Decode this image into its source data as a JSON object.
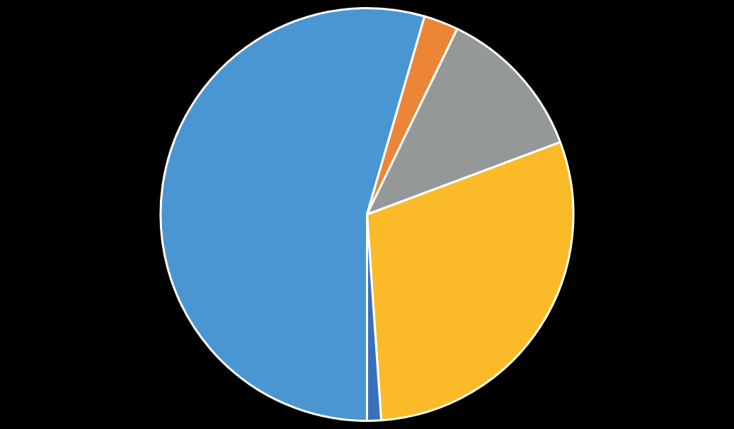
{
  "chart_data": {
    "type": "pie",
    "categories": [
      null,
      null,
      null,
      null,
      null
    ],
    "values": [
      54.5,
      2.7,
      12.1,
      29.6,
      1.1
    ],
    "colors": [
      "#4a96d2",
      "#ed8537",
      "#959899",
      "#fbbb28",
      "#3a70b9"
    ]
  }
}
